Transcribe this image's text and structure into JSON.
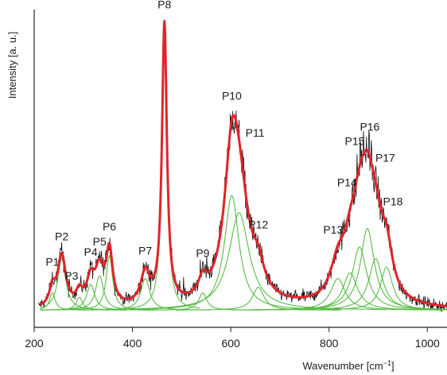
{
  "chart_data": {
    "type": "line",
    "title": "",
    "xlabel": "Wavenumber [cm",
    "xlabel_superscript": "−1",
    "xlabel_suffix": "]",
    "ylabel": "Intensity [a. u.]",
    "xlim": [
      200,
      1040
    ],
    "ylim": [
      -0.06,
      1.05
    ],
    "xticks": [
      200,
      400,
      600,
      800,
      1000
    ],
    "ytick_labels_shown": false,
    "grid": false,
    "legend": "none",
    "colors": {
      "raw_spectrum": "#111111",
      "envelope_fit": "#e0242a",
      "component_fits": "#57bb45",
      "axes": "#222222"
    },
    "series": [
      {
        "role": "raw data (noisy)"
      },
      {
        "role": "cumulative fit"
      },
      {
        "role": "deconvoluted peaks"
      }
    ],
    "peaks": [
      {
        "label": "P1",
        "center": 237,
        "height": 0.06,
        "width": 7
      },
      {
        "label": "P2",
        "center": 256,
        "height": 0.18,
        "width": 10
      },
      {
        "label": "P3",
        "center": 292,
        "height": 0.045,
        "width": 8
      },
      {
        "label": "P4",
        "center": 315,
        "height": 0.09,
        "width": 10
      },
      {
        "label": "P5",
        "center": 333,
        "height": 0.12,
        "width": 10
      },
      {
        "label": "P6",
        "center": 353,
        "height": 0.19,
        "width": 8
      },
      {
        "label": "P7",
        "center": 426,
        "height": 0.11,
        "width": 11
      },
      {
        "label": "P8",
        "center": 465,
        "height": 0.98,
        "width": 6
      },
      {
        "label": "P9",
        "center": 543,
        "height": 0.06,
        "width": 10
      },
      {
        "label": "P10",
        "center": 602,
        "height": 0.4,
        "width": 18
      },
      {
        "label": "P11",
        "center": 617,
        "height": 0.34,
        "width": 25
      },
      {
        "label": "P12",
        "center": 656,
        "height": 0.08,
        "width": 14
      },
      {
        "label": "P13",
        "center": 818,
        "height": 0.11,
        "width": 18
      },
      {
        "label": "P14",
        "center": 843,
        "height": 0.13,
        "width": 18
      },
      {
        "label": "P15",
        "center": 862,
        "height": 0.22,
        "width": 18
      },
      {
        "label": "P16",
        "center": 878,
        "height": 0.285,
        "width": 17
      },
      {
        "label": "P17",
        "center": 895,
        "height": 0.18,
        "width": 17
      },
      {
        "label": "P18",
        "center": 917,
        "height": 0.15,
        "width": 15
      }
    ]
  }
}
